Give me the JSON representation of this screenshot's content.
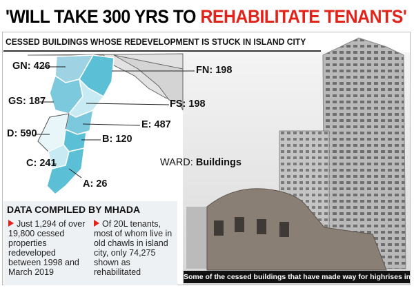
{
  "header": {
    "title_part1": "'WILL TAKE 300 YRS TO",
    "title_part2": "REHABILITATE TENANTS'"
  },
  "map": {
    "subtitle": "CESSED BUILDINGS WHOSE REDEVELOPMENT IS STUCK IN ISLAND CITY",
    "legend": {
      "key": "WARD:",
      "value": "Buildings"
    },
    "wards": [
      {
        "ward": "GN:",
        "buildings": 426
      },
      {
        "ward": "FN:",
        "buildings": 198
      },
      {
        "ward": "GS:",
        "buildings": 187
      },
      {
        "ward": "FS:",
        "buildings": 198
      },
      {
        "ward": "E:",
        "buildings": 487
      },
      {
        "ward": "D:",
        "buildings": 590
      },
      {
        "ward": "B:",
        "buildings": 120
      },
      {
        "ward": "C:",
        "buildings": 241
      },
      {
        "ward": "A:",
        "buildings": 26
      }
    ]
  },
  "data_box": {
    "title": "DATA COMPILED BY MHADA",
    "bullets": [
      "Just 1,294 of over 19,800 cessed properties redeveloped between 1998 and March 2019",
      "Of 20L tenants, most of whom live in old chawls in island city, only 74,275 shown as rehabilitated"
    ]
  },
  "photo": {
    "caption": "Some of the cessed buildings that have made way for highrises in Girgaum"
  }
}
